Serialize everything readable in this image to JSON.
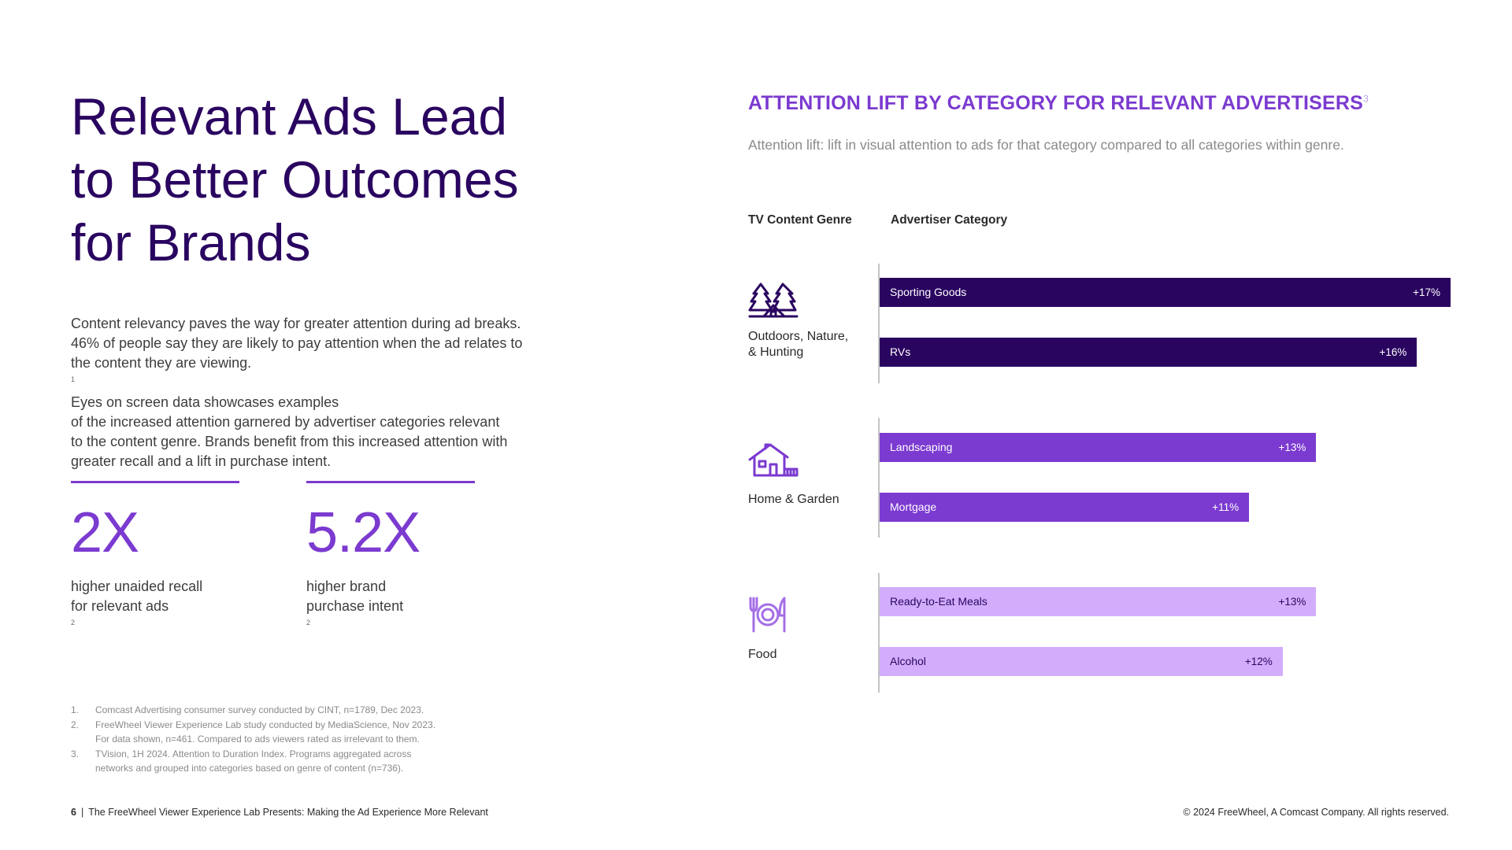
{
  "title_lines": [
    "Relevant Ads Lead",
    "to Better Outcomes",
    "for Brands"
  ],
  "body_lines": [
    "Content relevancy paves the way for greater attention during ad breaks.",
    "46% of people say they are likely to pay attention when the ad relates to",
    "the content they are viewing.",
    "1",
    " Eyes on screen data showcases examples",
    "of the increased attention garnered by advertiser categories relevant",
    "to the content genre. Brands benefit from this increased attention with",
    "greater recall and a lift in purchase intent."
  ],
  "stats": [
    {
      "value": "2X",
      "line1": "higher unaided recall",
      "line2": "for relevant ads",
      "sup": "2"
    },
    {
      "value": "5.2X",
      "line1": "higher brand",
      "line2": "purchase intent",
      "sup": "2"
    }
  ],
  "footnotes": [
    {
      "num": "1.",
      "lines": [
        "Comcast Advertising consumer survey conducted by CINT, n=1789, Dec 2023."
      ]
    },
    {
      "num": "2.",
      "lines": [
        "FreeWheel Viewer Experience Lab study conducted by MediaScience, Nov 2023.",
        "For data shown, n=461. Compared to ads viewers rated as irrelevant to them."
      ]
    },
    {
      "num": "3.",
      "lines": [
        "TVision, 1H 2024. Attention to Duration Index. Programs aggregated across",
        "networks and grouped into categories based on genre of content (n=736)."
      ]
    }
  ],
  "footer": {
    "page_number": "6",
    "separator": "|",
    "publication": "The FreeWheel Viewer Experience Lab Presents: Making the Ad Experience More Relevant",
    "copyright": "© 2024 FreeWheel, A Comcast Company. All rights reserved."
  },
  "colors": {
    "title": "#2a0560",
    "accent": "#7b3ad0",
    "bar_dark": "#2a0560",
    "bar_mid": "#7b3ad0",
    "bar_light": "#d2adfc"
  },
  "chart_data": {
    "type": "bar",
    "orientation": "horizontal",
    "title": "ATTENTION LIFT BY CATEGORY FOR RELEVANT ADVERTISERS",
    "title_sup": "3",
    "subtitle": "Attention lift: lift in visual attention to ads for that category compared to all categories within genre.",
    "column_headers": {
      "genre": "TV Content Genre",
      "category": "Advertiser Category"
    },
    "unit": "%",
    "xlim": [
      0,
      17
    ],
    "groups": [
      {
        "genre_lines": [
          "Outdoors, Nature,",
          "& Hunting"
        ],
        "icon": "trees-tent-icon",
        "color": "#2a0560",
        "text_color": "#ffffff",
        "bars": [
          {
            "category": "Sporting Goods",
            "value": 17,
            "label": "+17%"
          },
          {
            "category": "RVs",
            "value": 16,
            "label": "+16%"
          }
        ]
      },
      {
        "genre_lines": [
          "Home & Garden"
        ],
        "icon": "house-icon",
        "color": "#7b3ad0",
        "text_color": "#ffffff",
        "bars": [
          {
            "category": "Landscaping",
            "value": 13,
            "label": "+13%"
          },
          {
            "category": "Mortgage",
            "value": 11,
            "label": "+11%"
          }
        ]
      },
      {
        "genre_lines": [
          "Food"
        ],
        "icon": "plate-fork-knife-icon",
        "color": "#d2adfc",
        "text_color": "#2a0560",
        "bars": [
          {
            "category": "Ready-to-Eat Meals",
            "value": 13,
            "label": "+13%"
          },
          {
            "category": "Alcohol",
            "value": 12,
            "label": "+12%"
          }
        ]
      }
    ]
  }
}
